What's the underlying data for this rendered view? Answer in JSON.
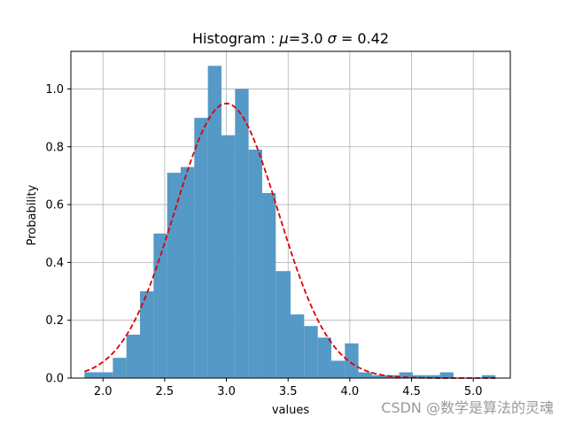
{
  "chart_data": {
    "type": "bar",
    "title": "Histogram : μ=3.0 σ = 0.42",
    "title_parts": {
      "prefix": "Histogram : ",
      "mu": "μ",
      "mu_value": "=3.0 ",
      "sigma": "σ",
      "sigma_value": " = 0.42"
    },
    "xlabel": "values",
    "ylabel": "Probability",
    "xlim": [
      1.74,
      5.3
    ],
    "ylim": [
      0,
      1.13
    ],
    "x_ticks": [
      2.0,
      2.5,
      3.0,
      3.5,
      4.0,
      4.5,
      5.0
    ],
    "x_tick_labels": [
      "2.0",
      "2.5",
      "3.0",
      "3.5",
      "4.0",
      "4.5",
      "5.0"
    ],
    "y_ticks": [
      0.0,
      0.2,
      0.4,
      0.6,
      0.8,
      1.0
    ],
    "y_tick_labels": [
      "0.0",
      "0.2",
      "0.4",
      "0.6",
      "0.8",
      "1.0"
    ],
    "grid": true,
    "bar_color": "#5599c7",
    "bins": [
      {
        "left": 1.85,
        "right": 1.96,
        "value": 0.02
      },
      {
        "left": 1.96,
        "right": 2.08,
        "value": 0.02
      },
      {
        "left": 2.08,
        "right": 2.19,
        "value": 0.07
      },
      {
        "left": 2.19,
        "right": 2.3,
        "value": 0.15
      },
      {
        "left": 2.3,
        "right": 2.41,
        "value": 0.3
      },
      {
        "left": 2.41,
        "right": 2.52,
        "value": 0.5
      },
      {
        "left": 2.52,
        "right": 2.63,
        "value": 0.71
      },
      {
        "left": 2.63,
        "right": 2.74,
        "value": 0.73
      },
      {
        "left": 2.74,
        "right": 2.85,
        "value": 0.9
      },
      {
        "left": 2.85,
        "right": 2.96,
        "value": 1.08
      },
      {
        "left": 2.96,
        "right": 3.07,
        "value": 0.84
      },
      {
        "left": 3.07,
        "right": 3.18,
        "value": 1.0
      },
      {
        "left": 3.18,
        "right": 3.29,
        "value": 0.79
      },
      {
        "left": 3.29,
        "right": 3.4,
        "value": 0.64
      },
      {
        "left": 3.4,
        "right": 3.52,
        "value": 0.37
      },
      {
        "left": 3.52,
        "right": 3.63,
        "value": 0.22
      },
      {
        "left": 3.63,
        "right": 3.74,
        "value": 0.18
      },
      {
        "left": 3.74,
        "right": 3.85,
        "value": 0.14
      },
      {
        "left": 3.85,
        "right": 3.96,
        "value": 0.06
      },
      {
        "left": 3.96,
        "right": 4.07,
        "value": 0.12
      },
      {
        "left": 4.07,
        "right": 4.18,
        "value": 0.02
      },
      {
        "left": 4.18,
        "right": 4.29,
        "value": 0.01
      },
      {
        "left": 4.29,
        "right": 4.4,
        "value": 0.01
      },
      {
        "left": 4.4,
        "right": 4.51,
        "value": 0.02
      },
      {
        "left": 4.51,
        "right": 4.62,
        "value": 0.01
      },
      {
        "left": 4.62,
        "right": 4.73,
        "value": 0.01
      },
      {
        "left": 4.73,
        "right": 4.84,
        "value": 0.02
      },
      {
        "left": 4.84,
        "right": 4.95,
        "value": 0.0
      },
      {
        "left": 4.95,
        "right": 5.07,
        "value": 0.0
      },
      {
        "left": 5.07,
        "right": 5.18,
        "value": 0.01
      }
    ],
    "fit_line": {
      "style": "dashed",
      "color": "#dd0000",
      "mu": 3.0,
      "sigma": 0.42,
      "x_range": [
        1.85,
        5.18
      ]
    }
  },
  "watermark": "CSDN @数学是算法的灵魂"
}
